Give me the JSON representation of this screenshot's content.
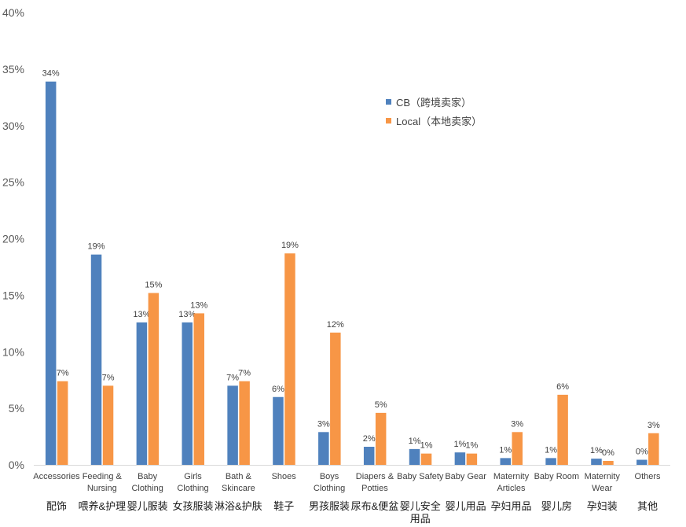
{
  "chart_data": {
    "type": "bar",
    "categories": [
      "Accessories",
      "Feeding & Nursing",
      "Baby Clothing",
      "Girls Clothing",
      "Bath & Skincare",
      "Shoes",
      "Boys Clothing",
      "Diapers & Potties",
      "Baby Safety",
      "Baby Gear",
      "Maternity Articles",
      "Baby Room",
      "Maternity Wear",
      "Others"
    ],
    "categories_zh": [
      "配饰",
      "喂养&护理",
      "婴儿服装",
      "女孩服装",
      "淋浴&护肤",
      "鞋子",
      "男孩服装",
      "尿布&便盆",
      "婴儿安全用品",
      "婴儿用品",
      "孕妇用品",
      "婴儿房",
      "孕妇装",
      "其他"
    ],
    "series": [
      {
        "name": "CB（跨境卖家）",
        "color": "#4F81BD",
        "values": [
          33.9,
          18.6,
          12.6,
          12.6,
          7.0,
          6.0,
          2.9,
          1.6,
          1.4,
          1.1,
          0.6,
          0.6,
          0.55,
          0.45
        ],
        "labels": [
          "34%",
          "19%",
          "13%",
          "13%",
          "7%",
          "6%",
          "3%",
          "2%",
          "1%",
          "1%",
          "1%",
          "1%",
          "1%",
          "0%"
        ]
      },
      {
        "name": "Local（本地卖家）",
        "color": "#F79646",
        "values": [
          7.4,
          7.0,
          15.2,
          13.4,
          7.4,
          18.7,
          11.7,
          4.6,
          1.0,
          1.0,
          2.9,
          6.2,
          0.35,
          2.8
        ],
        "labels": [
          "7%",
          "7%",
          "15%",
          "13%",
          "7%",
          "19%",
          "12%",
          "5%",
          "1%",
          "1%",
          "3%",
          "6%",
          "0%",
          "3%"
        ]
      }
    ],
    "ylim": [
      0,
      40
    ],
    "yticks": [
      0,
      5,
      10,
      15,
      20,
      25,
      30,
      35,
      40
    ],
    "ytick_labels": [
      "0%",
      "5%",
      "10%",
      "15%",
      "20%",
      "25%",
      "30%",
      "35%",
      "40%"
    ],
    "grid": false,
    "legend": "top-right"
  }
}
